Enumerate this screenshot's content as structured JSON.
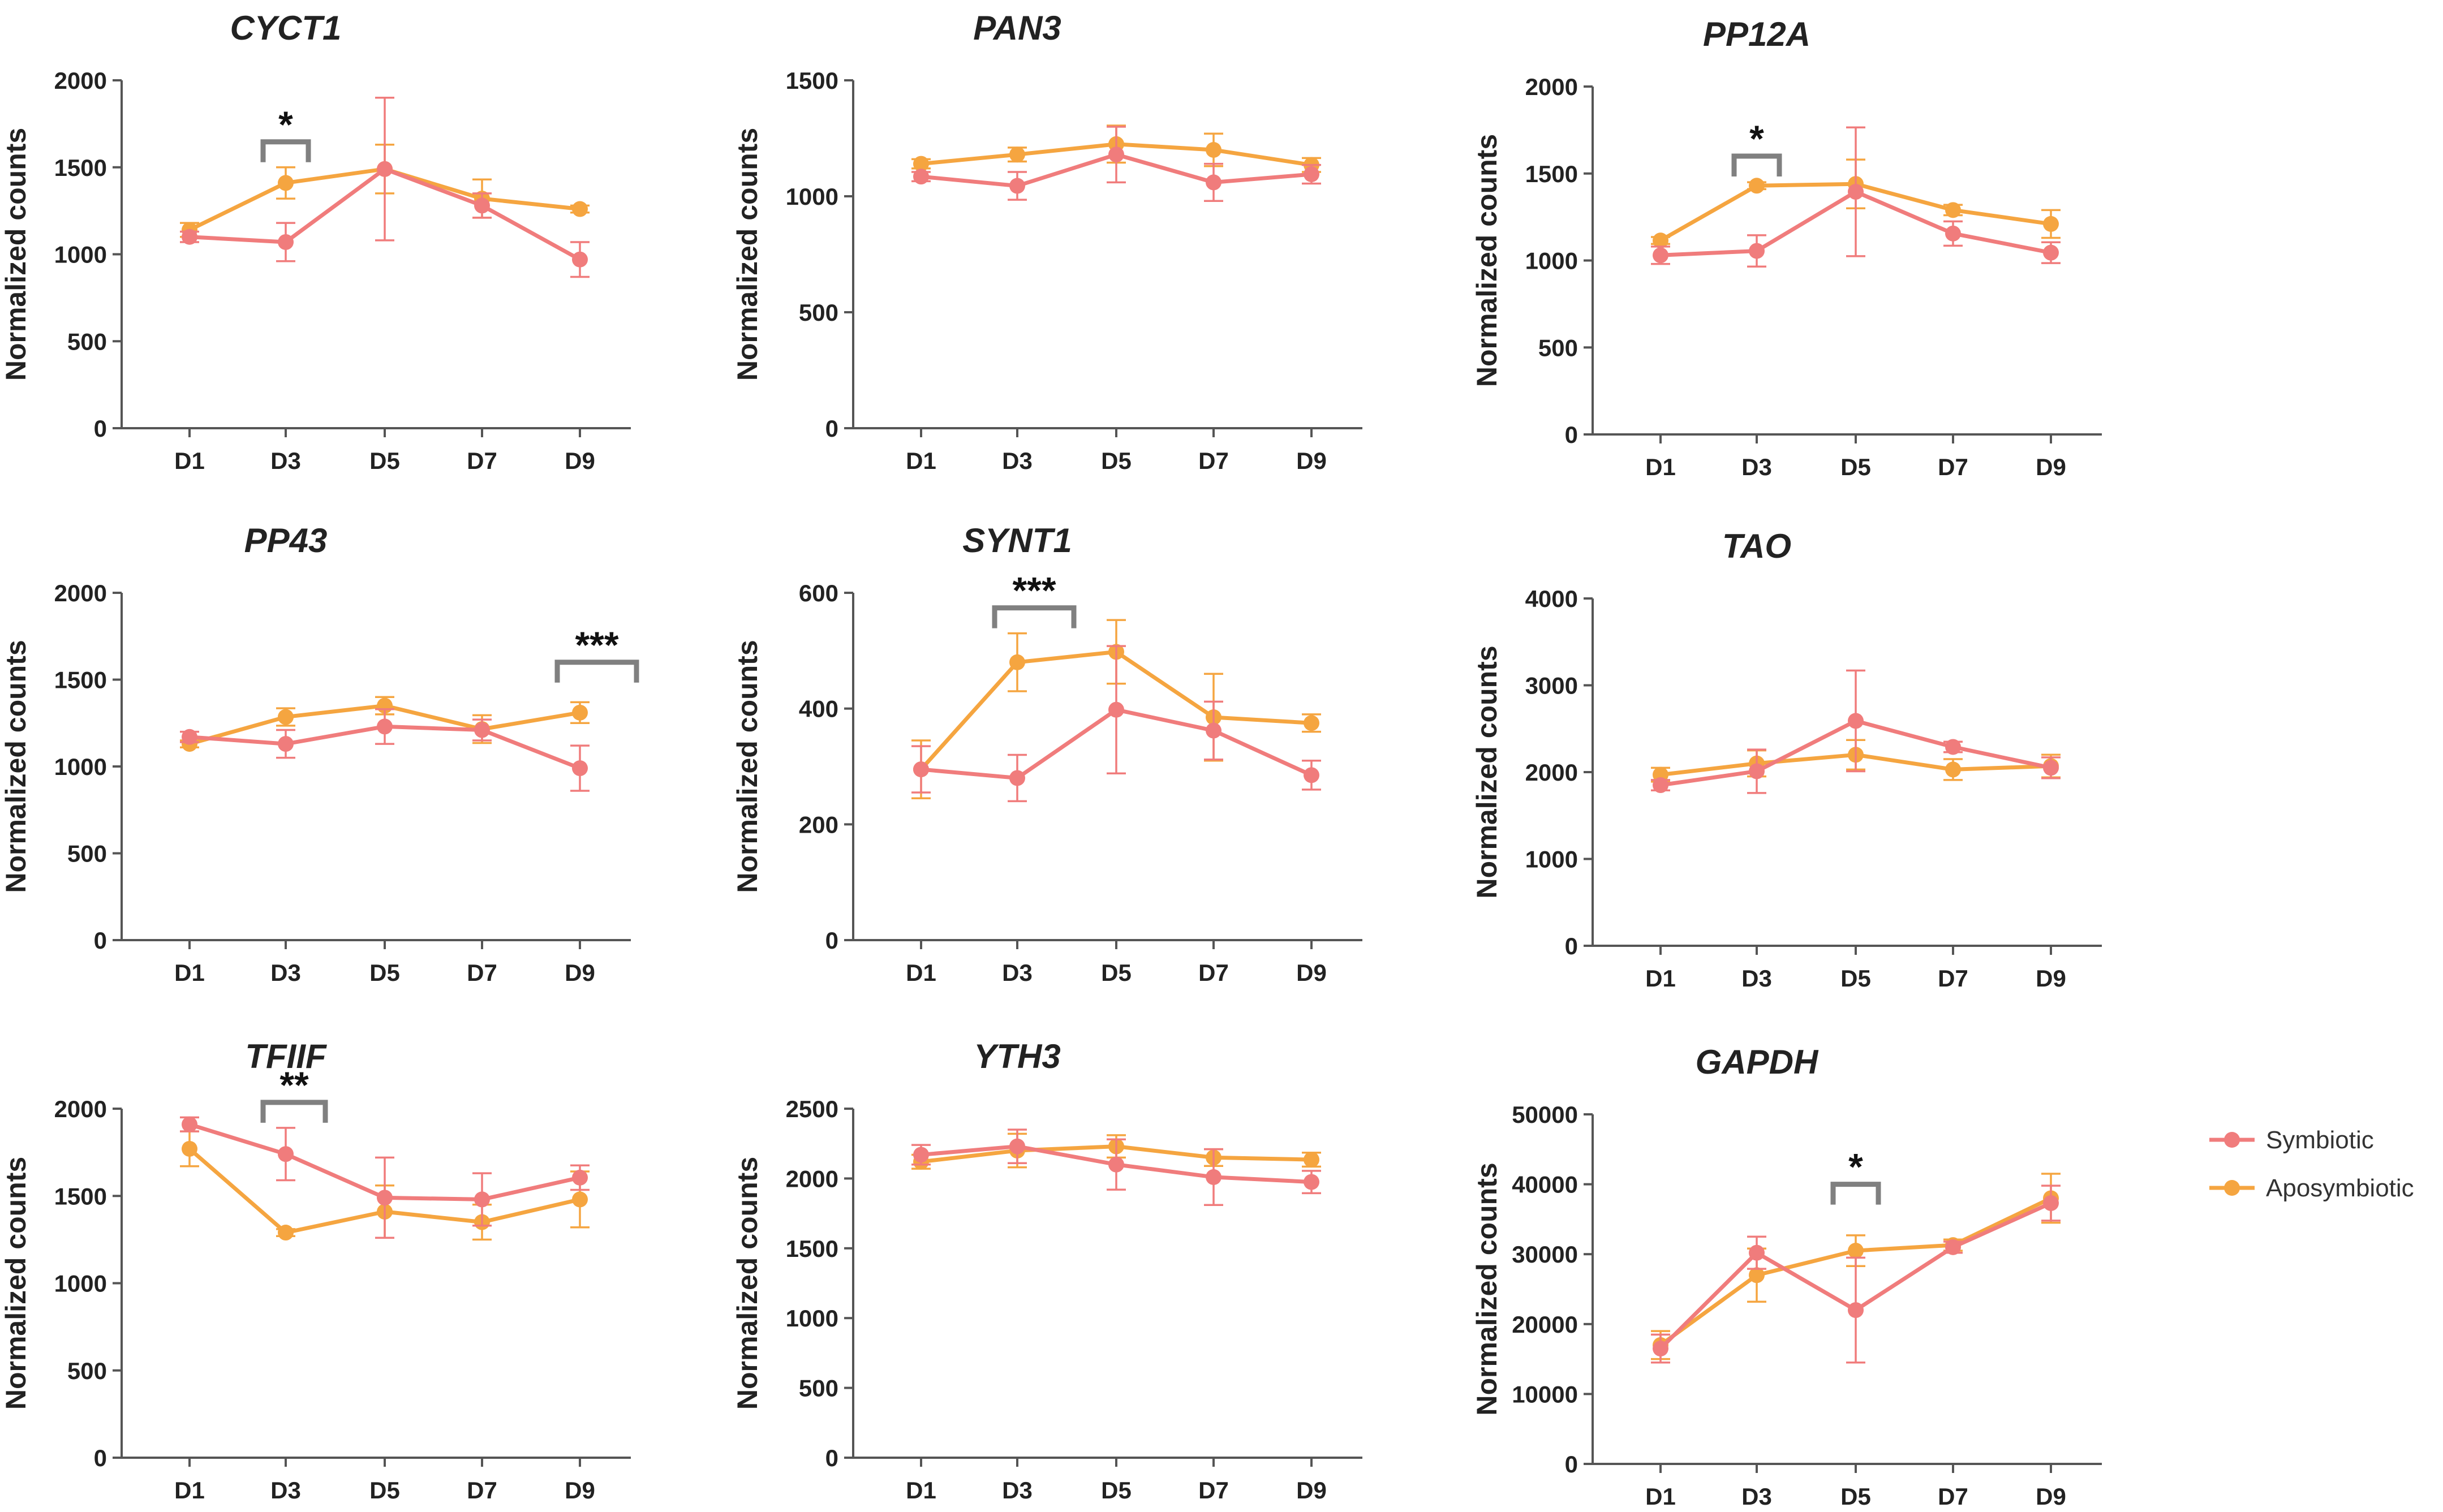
{
  "legend": [
    {
      "name": "Symbiotic",
      "color": "#F07C7C"
    },
    {
      "name": "Aposymbiotic",
      "color": "#F5A540"
    }
  ],
  "colors": {
    "symbiotic": "#F07C7C",
    "aposymbiotic": "#F5A540",
    "axis": "#555555",
    "bracket": "#808080"
  },
  "chart_data": [
    {
      "type": "line",
      "title": "CYCT1",
      "ylabel": "Normalized counts",
      "xlabel": "",
      "categories": [
        "D1",
        "D3",
        "D5",
        "D7",
        "D9"
      ],
      "ylim": [
        0,
        2000
      ],
      "yticks": [
        0,
        500,
        1000,
        1500,
        2000
      ],
      "series": [
        {
          "name": "Symbiotic",
          "values": [
            1100,
            1070,
            1490,
            1280,
            970
          ],
          "errors": [
            30,
            110,
            410,
            70,
            100
          ]
        },
        {
          "name": "Aposymbiotic",
          "values": [
            1140,
            1410,
            1490,
            1320,
            1260
          ],
          "errors": [
            40,
            90,
            140,
            110,
            20
          ]
        }
      ],
      "annotations": [
        {
          "label": "*",
          "from": 1,
          "to": 1
        }
      ]
    },
    {
      "type": "line",
      "title": "PAN3",
      "ylabel": "Normalized counts",
      "xlabel": "",
      "categories": [
        "D1",
        "D3",
        "D5",
        "D7",
        "D9"
      ],
      "ylim": [
        0,
        1500
      ],
      "yticks": [
        0,
        500,
        1000,
        1500
      ],
      "series": [
        {
          "name": "Symbiotic",
          "values": [
            1085,
            1045,
            1180,
            1060,
            1095
          ],
          "errors": [
            20,
            60,
            120,
            80,
            40
          ]
        },
        {
          "name": "Aposymbiotic",
          "values": [
            1140,
            1180,
            1225,
            1200,
            1135
          ],
          "errors": [
            20,
            30,
            80,
            70,
            30
          ]
        }
      ],
      "annotations": []
    },
    {
      "type": "line",
      "title": "PP12A",
      "ylabel": "Normalized counts",
      "xlabel": "",
      "categories": [
        "D1",
        "D3",
        "D5",
        "D7",
        "D9"
      ],
      "ylim": [
        0,
        2000
      ],
      "yticks": [
        0,
        500,
        1000,
        1500,
        2000
      ],
      "series": [
        {
          "name": "Symbiotic",
          "values": [
            1030,
            1055,
            1395,
            1155,
            1045
          ],
          "errors": [
            50,
            90,
            370,
            70,
            60
          ]
        },
        {
          "name": "Aposymbiotic",
          "values": [
            1115,
            1430,
            1440,
            1290,
            1210
          ],
          "errors": [
            20,
            20,
            140,
            30,
            80
          ]
        }
      ],
      "annotations": [
        {
          "label": "*",
          "from": 1,
          "to": 1
        }
      ]
    },
    {
      "type": "line",
      "title": "PP43",
      "ylabel": "Normalized counts",
      "xlabel": "",
      "categories": [
        "D1",
        "D3",
        "D5",
        "D7",
        "D9"
      ],
      "ylim": [
        0,
        2000
      ],
      "yticks": [
        0,
        500,
        1000,
        1500,
        2000
      ],
      "series": [
        {
          "name": "Symbiotic",
          "values": [
            1170,
            1130,
            1230,
            1210,
            990
          ],
          "errors": [
            30,
            80,
            100,
            60,
            130
          ]
        },
        {
          "name": "Aposymbiotic",
          "values": [
            1130,
            1285,
            1350,
            1215,
            1310
          ],
          "errors": [
            20,
            50,
            50,
            80,
            60
          ]
        }
      ],
      "annotations": [
        {
          "label": "***",
          "from": 4,
          "to": 4
        }
      ]
    },
    {
      "type": "line",
      "title": "SYNT1",
      "ylabel": "Normalized counts",
      "xlabel": "",
      "categories": [
        "D1",
        "D3",
        "D5",
        "D7",
        "D9"
      ],
      "ylim": [
        0,
        600
      ],
      "yticks": [
        0,
        200,
        400,
        600
      ],
      "series": [
        {
          "name": "Symbiotic",
          "values": [
            295,
            280,
            398,
            362,
            285
          ],
          "errors": [
            40,
            40,
            110,
            50,
            25
          ]
        },
        {
          "name": "Aposymbiotic",
          "values": [
            295,
            480,
            498,
            385,
            375
          ],
          "errors": [
            50,
            50,
            55,
            75,
            15
          ]
        }
      ],
      "annotations": [
        {
          "label": "***",
          "from": 1,
          "to": 1
        }
      ]
    },
    {
      "type": "line",
      "title": "TAO",
      "ylabel": "Normalized counts",
      "xlabel": "",
      "categories": [
        "D1",
        "D3",
        "D5",
        "D7",
        "D9"
      ],
      "ylim": [
        0,
        4000
      ],
      "yticks": [
        0,
        1000,
        2000,
        3000,
        4000
      ],
      "series": [
        {
          "name": "Symbiotic",
          "values": [
            1850,
            2010,
            2590,
            2290,
            2050
          ],
          "errors": [
            60,
            250,
            580,
            60,
            120
          ]
        },
        {
          "name": "Aposymbiotic",
          "values": [
            1970,
            2100,
            2200,
            2030,
            2070
          ],
          "errors": [
            80,
            150,
            170,
            120,
            130
          ]
        }
      ],
      "annotations": []
    },
    {
      "type": "line",
      "title": "TFIIF",
      "ylabel": "Normalized counts",
      "xlabel": "",
      "categories": [
        "D1",
        "D3",
        "D5",
        "D7",
        "D9"
      ],
      "ylim": [
        0,
        2000
      ],
      "yticks": [
        0,
        500,
        1000,
        1500,
        2000
      ],
      "series": [
        {
          "name": "Symbiotic",
          "values": [
            1910,
            1740,
            1490,
            1480,
            1605
          ],
          "errors": [
            40,
            150,
            230,
            150,
            70
          ]
        },
        {
          "name": "Aposymbiotic",
          "values": [
            1770,
            1290,
            1410,
            1350,
            1480
          ],
          "errors": [
            100,
            20,
            150,
            100,
            160
          ]
        }
      ],
      "annotations": [
        {
          "label": "**",
          "from": 1,
          "to": 1
        }
      ]
    },
    {
      "type": "line",
      "title": "YTH3",
      "ylabel": "Normalized counts",
      "xlabel": "",
      "categories": [
        "D1",
        "D3",
        "D5",
        "D7",
        "D9"
      ],
      "ylim": [
        0,
        2500
      ],
      "yticks": [
        0,
        500,
        1000,
        1500,
        2000,
        2500
      ],
      "series": [
        {
          "name": "Symbiotic",
          "values": [
            2170,
            2230,
            2100,
            2010,
            1975
          ],
          "errors": [
            70,
            120,
            180,
            200,
            80
          ]
        },
        {
          "name": "Aposymbiotic",
          "values": [
            2120,
            2200,
            2230,
            2150,
            2135
          ],
          "errors": [
            50,
            120,
            80,
            60,
            50
          ]
        }
      ],
      "annotations": []
    },
    {
      "type": "line",
      "title": "GAPDH",
      "ylabel": "Normalized counts",
      "xlabel": "",
      "categories": [
        "D1",
        "D3",
        "D5",
        "D7",
        "D9"
      ],
      "ylim": [
        0,
        50000
      ],
      "yticks": [
        0,
        10000,
        20000,
        30000,
        40000,
        50000
      ],
      "series": [
        {
          "name": "Symbiotic",
          "values": [
            16500,
            30200,
            22000,
            31000,
            37300
          ],
          "errors": [
            2000,
            2300,
            7500,
            800,
            2500
          ]
        },
        {
          "name": "Aposymbiotic",
          "values": [
            17000,
            27000,
            30500,
            31300,
            38000
          ],
          "errors": [
            2000,
            3800,
            2200,
            800,
            3500
          ]
        }
      ],
      "annotations": [
        {
          "label": "*",
          "from": 2,
          "to": 2
        }
      ]
    }
  ]
}
